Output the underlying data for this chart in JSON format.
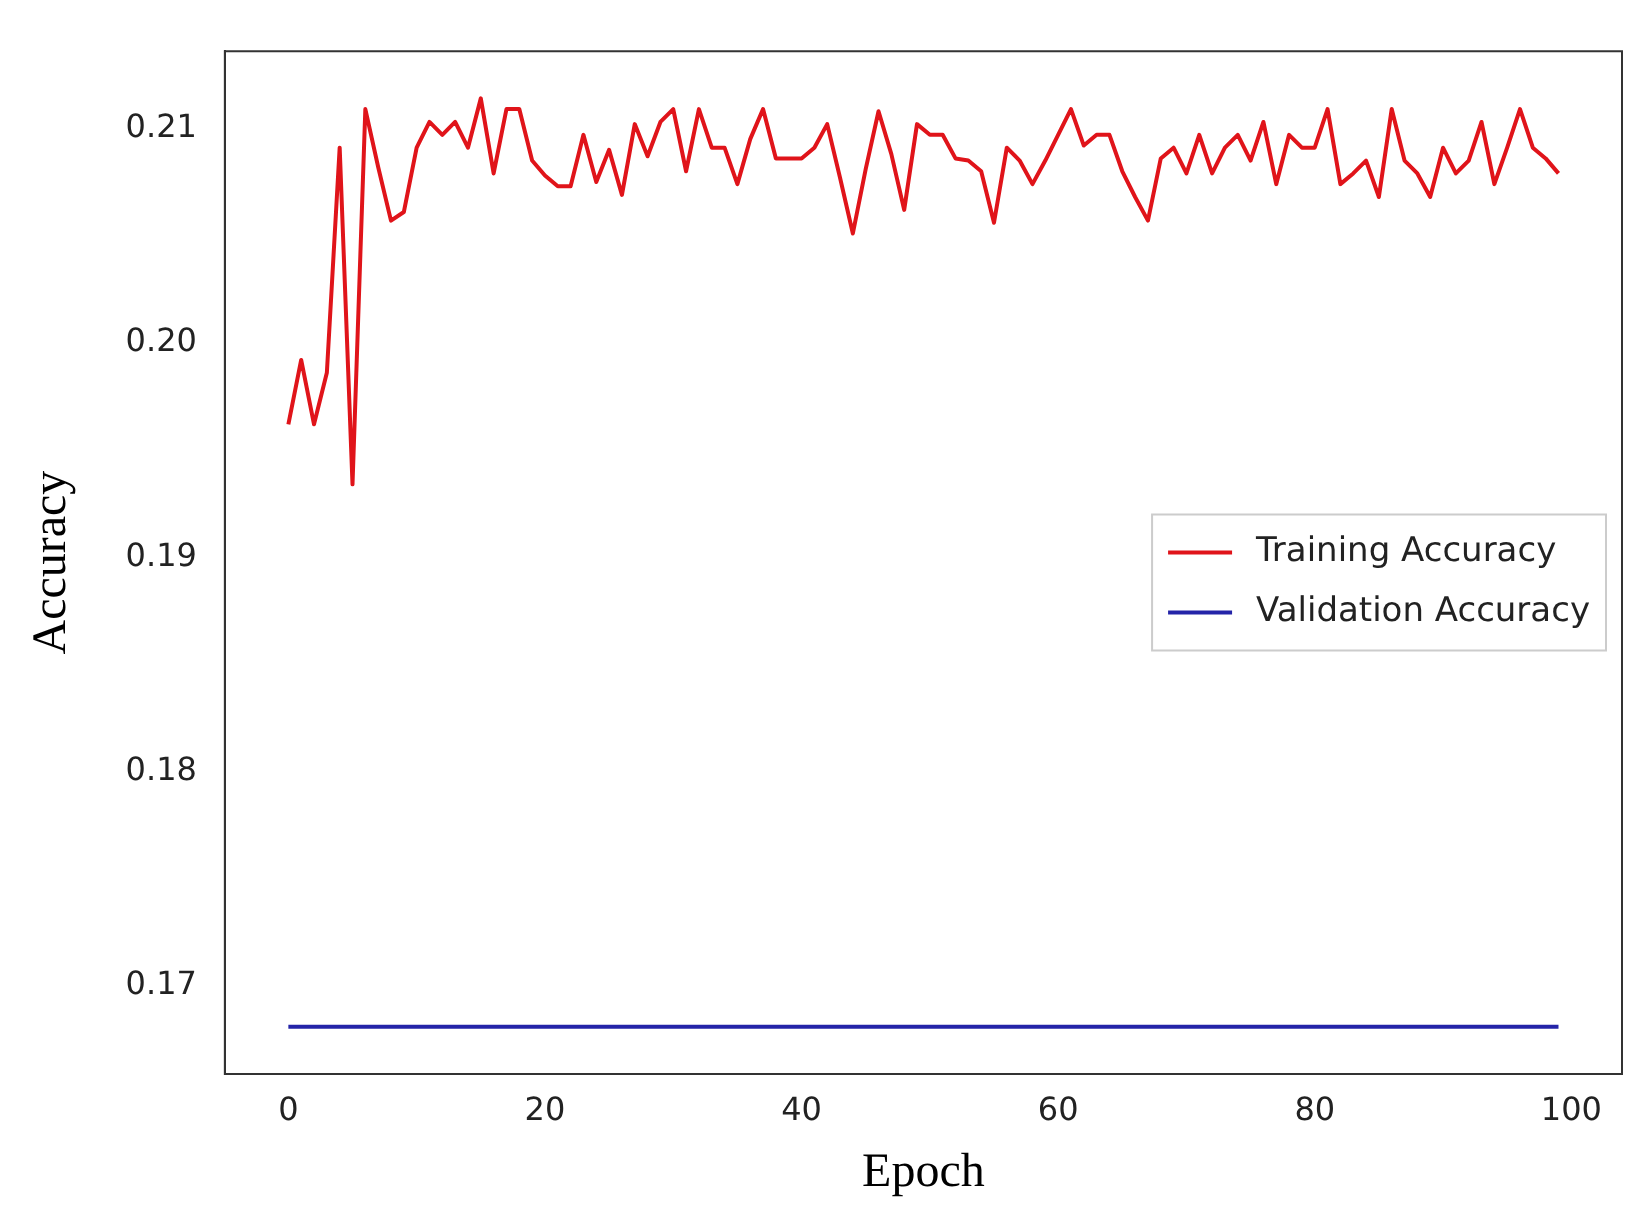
{
  "chart_data": {
    "type": "line",
    "xlabel": "Epoch",
    "ylabel": "Accuracy",
    "x": [
      0,
      1,
      2,
      3,
      4,
      5,
      6,
      7,
      8,
      9,
      10,
      11,
      12,
      13,
      14,
      15,
      16,
      17,
      18,
      19,
      20,
      21,
      22,
      23,
      24,
      25,
      26,
      27,
      28,
      29,
      30,
      31,
      32,
      33,
      34,
      35,
      36,
      37,
      38,
      39,
      40,
      41,
      42,
      43,
      44,
      45,
      46,
      47,
      48,
      49,
      50,
      51,
      52,
      53,
      54,
      55,
      56,
      57,
      58,
      59,
      60,
      61,
      62,
      63,
      64,
      65,
      66,
      67,
      68,
      69,
      70,
      71,
      72,
      73,
      74,
      75,
      76,
      77,
      78,
      79,
      80,
      81,
      82,
      83,
      84,
      85,
      86,
      87,
      88,
      89,
      90,
      91,
      92,
      93,
      94,
      95,
      96,
      97,
      98,
      99
    ],
    "series": [
      {
        "name": "Training Accuracy",
        "color": "#e0141a",
        "values": [
          0.1962,
          0.1992,
          0.1962,
          0.1986,
          0.2091,
          0.1934,
          0.2109,
          0.2082,
          0.2057,
          0.2061,
          0.2091,
          0.2103,
          0.2097,
          0.2103,
          0.2091,
          0.2114,
          0.2079,
          0.2109,
          0.2109,
          0.2085,
          0.2078,
          0.2073,
          0.2073,
          0.2097,
          0.2075,
          0.209,
          0.2069,
          0.2102,
          0.2087,
          0.2103,
          0.2109,
          0.208,
          0.2109,
          0.2091,
          0.2091,
          0.2074,
          0.2095,
          0.2109,
          0.2086,
          0.2086,
          0.2086,
          0.2091,
          0.2102,
          0.2077,
          0.2051,
          0.2081,
          0.2108,
          0.2088,
          0.2062,
          0.2102,
          0.2097,
          0.2097,
          0.2086,
          0.2085,
          0.208,
          0.2056,
          0.2091,
          0.2085,
          0.2074,
          0.2085,
          0.2097,
          0.2109,
          0.2092,
          0.2097,
          0.2097,
          0.208,
          0.2068,
          0.2057,
          0.2086,
          0.2091,
          0.2079,
          0.2097,
          0.2079,
          0.2091,
          0.2097,
          0.2085,
          0.2103,
          0.2074,
          0.2097,
          0.2091,
          0.2091,
          0.2109,
          0.2074,
          0.2079,
          0.2085,
          0.2068,
          0.2109,
          0.2085,
          0.2079,
          0.2068,
          0.2091,
          0.2079,
          0.2085,
          0.2103,
          0.2074,
          0.2091,
          0.2109,
          0.2091,
          0.2086,
          0.2079
        ]
      },
      {
        "name": "Validation Accuracy",
        "color": "#2424a8",
        "values": [
          0.1681,
          0.1681,
          0.1681,
          0.1681,
          0.1681,
          0.1681,
          0.1681,
          0.1681,
          0.1681,
          0.1681,
          0.1681,
          0.1681,
          0.1681,
          0.1681,
          0.1681,
          0.1681,
          0.1681,
          0.1681,
          0.1681,
          0.1681,
          0.1681,
          0.1681,
          0.1681,
          0.1681,
          0.1681,
          0.1681,
          0.1681,
          0.1681,
          0.1681,
          0.1681,
          0.1681,
          0.1681,
          0.1681,
          0.1681,
          0.1681,
          0.1681,
          0.1681,
          0.1681,
          0.1681,
          0.1681,
          0.1681,
          0.1681,
          0.1681,
          0.1681,
          0.1681,
          0.1681,
          0.1681,
          0.1681,
          0.1681,
          0.1681,
          0.1681,
          0.1681,
          0.1681,
          0.1681,
          0.1681,
          0.1681,
          0.1681,
          0.1681,
          0.1681,
          0.1681,
          0.1681,
          0.1681,
          0.1681,
          0.1681,
          0.1681,
          0.1681,
          0.1681,
          0.1681,
          0.1681,
          0.1681,
          0.1681,
          0.1681,
          0.1681,
          0.1681,
          0.1681,
          0.1681,
          0.1681,
          0.1681,
          0.1681,
          0.1681,
          0.1681,
          0.1681,
          0.1681,
          0.1681,
          0.1681,
          0.1681,
          0.1681,
          0.1681,
          0.1681,
          0.1681,
          0.1681,
          0.1681,
          0.1681,
          0.1681,
          0.1681,
          0.1681,
          0.1681,
          0.1681,
          0.1681,
          0.1681
        ]
      }
    ],
    "xlim": [
      -4.95,
      103.95
    ],
    "xticks": [
      0,
      20,
      40,
      60,
      80,
      100
    ],
    "ylim": [
      0.1659,
      0.2136
    ],
    "yticks": [
      0.17,
      0.18,
      0.19,
      {
        "value": 0.2,
        "label": "0.20"
      },
      0.21
    ],
    "grid": false,
    "legend": "right",
    "marker": "none",
    "line_style": "solid"
  }
}
